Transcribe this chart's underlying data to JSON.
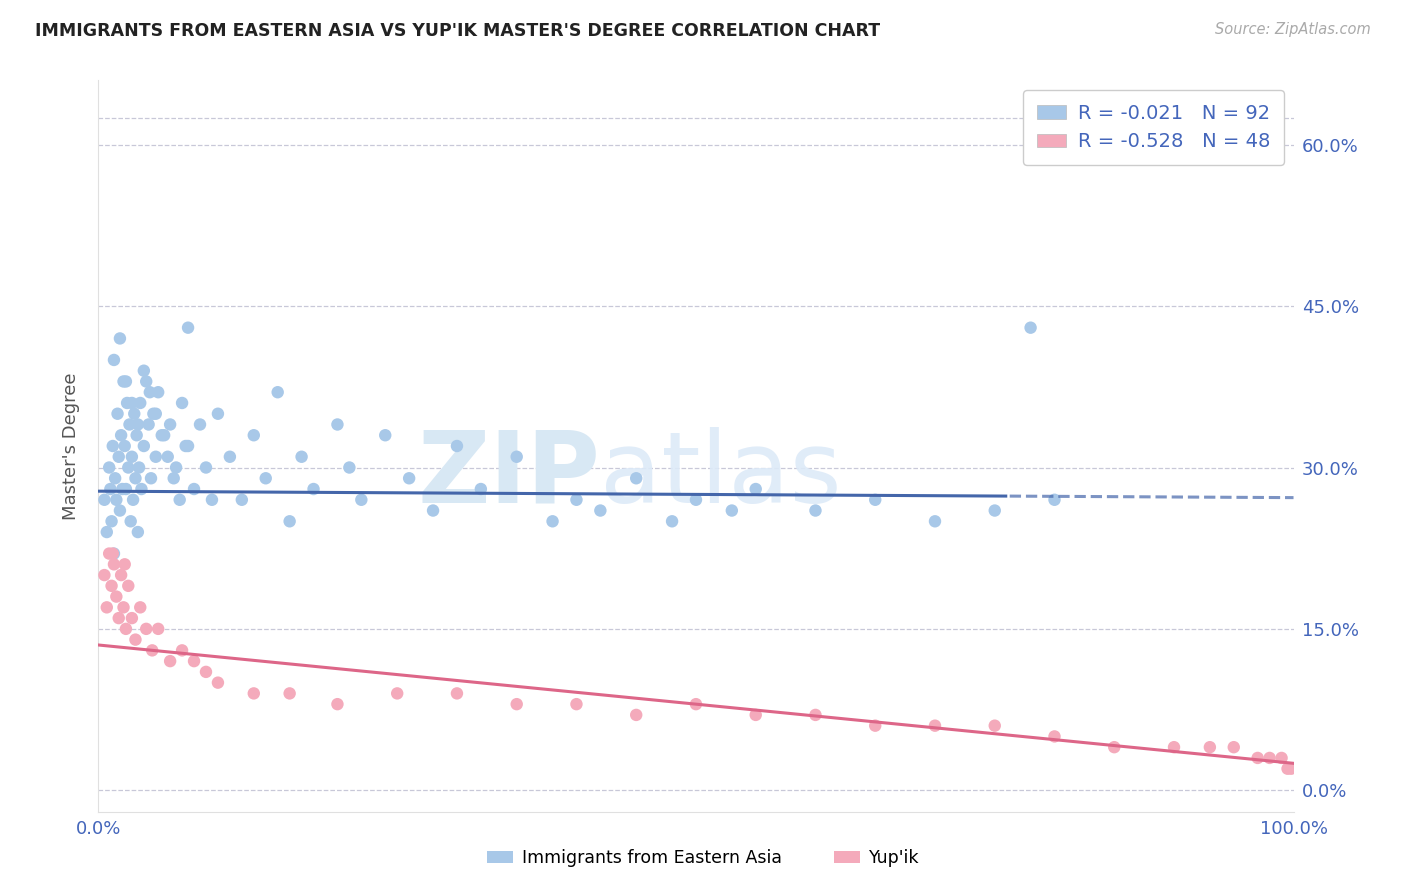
{
  "title": "IMMIGRANTS FROM EASTERN ASIA VS YUP'IK MASTER'S DEGREE CORRELATION CHART",
  "source": "Source: ZipAtlas.com",
  "ylabel": "Master's Degree",
  "xlim": [
    0.0,
    1.0
  ],
  "ylim": [
    -0.02,
    0.66
  ],
  "yticks": [
    0.0,
    0.15,
    0.3,
    0.45,
    0.6
  ],
  "ytick_labels": [
    "0.0%",
    "15.0%",
    "30.0%",
    "45.0%",
    "60.0%"
  ],
  "blue_color": "#a8c8e8",
  "pink_color": "#f4aabb",
  "line_blue": "#4466aa",
  "line_pink": "#dd6688",
  "grid_color": "#c8c8d8",
  "title_color": "#222222",
  "axis_color": "#4466bb",
  "R_blue": -0.021,
  "N_blue": 92,
  "R_pink": -0.528,
  "N_pink": 48,
  "blue_x": [
    0.005,
    0.007,
    0.009,
    0.01,
    0.011,
    0.012,
    0.013,
    0.014,
    0.015,
    0.016,
    0.017,
    0.018,
    0.019,
    0.02,
    0.021,
    0.022,
    0.023,
    0.024,
    0.025,
    0.026,
    0.027,
    0.028,
    0.029,
    0.03,
    0.031,
    0.032,
    0.033,
    0.034,
    0.035,
    0.036,
    0.038,
    0.04,
    0.042,
    0.044,
    0.046,
    0.048,
    0.05,
    0.055,
    0.06,
    0.065,
    0.07,
    0.075,
    0.08,
    0.085,
    0.09,
    0.095,
    0.1,
    0.11,
    0.12,
    0.13,
    0.14,
    0.15,
    0.16,
    0.17,
    0.18,
    0.2,
    0.21,
    0.22,
    0.24,
    0.26,
    0.28,
    0.3,
    0.32,
    0.35,
    0.38,
    0.4,
    0.42,
    0.45,
    0.48,
    0.5,
    0.53,
    0.55,
    0.6,
    0.65,
    0.7,
    0.75,
    0.8,
    0.013,
    0.018,
    0.023,
    0.028,
    0.033,
    0.038,
    0.043,
    0.048,
    0.053,
    0.058,
    0.063,
    0.068,
    0.073,
    0.075,
    0.78
  ],
  "blue_y": [
    0.27,
    0.24,
    0.3,
    0.28,
    0.25,
    0.32,
    0.22,
    0.29,
    0.27,
    0.35,
    0.31,
    0.26,
    0.33,
    0.28,
    0.38,
    0.32,
    0.28,
    0.36,
    0.3,
    0.34,
    0.25,
    0.31,
    0.27,
    0.35,
    0.29,
    0.33,
    0.24,
    0.3,
    0.36,
    0.28,
    0.32,
    0.38,
    0.34,
    0.29,
    0.35,
    0.31,
    0.37,
    0.33,
    0.34,
    0.3,
    0.36,
    0.32,
    0.28,
    0.34,
    0.3,
    0.27,
    0.35,
    0.31,
    0.27,
    0.33,
    0.29,
    0.37,
    0.25,
    0.31,
    0.28,
    0.34,
    0.3,
    0.27,
    0.33,
    0.29,
    0.26,
    0.32,
    0.28,
    0.31,
    0.25,
    0.27,
    0.26,
    0.29,
    0.25,
    0.27,
    0.26,
    0.28,
    0.26,
    0.27,
    0.25,
    0.26,
    0.27,
    0.4,
    0.42,
    0.38,
    0.36,
    0.34,
    0.39,
    0.37,
    0.35,
    0.33,
    0.31,
    0.29,
    0.27,
    0.32,
    0.43,
    0.43
  ],
  "pink_x": [
    0.005,
    0.007,
    0.009,
    0.011,
    0.013,
    0.015,
    0.017,
    0.019,
    0.021,
    0.023,
    0.025,
    0.028,
    0.031,
    0.035,
    0.04,
    0.045,
    0.05,
    0.06,
    0.07,
    0.08,
    0.09,
    0.1,
    0.13,
    0.16,
    0.2,
    0.25,
    0.3,
    0.35,
    0.4,
    0.45,
    0.5,
    0.55,
    0.6,
    0.65,
    0.7,
    0.75,
    0.8,
    0.85,
    0.9,
    0.93,
    0.95,
    0.97,
    0.98,
    0.99,
    0.995,
    0.998,
    0.012,
    0.022
  ],
  "pink_y": [
    0.2,
    0.17,
    0.22,
    0.19,
    0.21,
    0.18,
    0.16,
    0.2,
    0.17,
    0.15,
    0.19,
    0.16,
    0.14,
    0.17,
    0.15,
    0.13,
    0.15,
    0.12,
    0.13,
    0.12,
    0.11,
    0.1,
    0.09,
    0.09,
    0.08,
    0.09,
    0.09,
    0.08,
    0.08,
    0.07,
    0.08,
    0.07,
    0.07,
    0.06,
    0.06,
    0.06,
    0.05,
    0.04,
    0.04,
    0.04,
    0.04,
    0.03,
    0.03,
    0.03,
    0.02,
    0.02,
    0.22,
    0.21
  ]
}
